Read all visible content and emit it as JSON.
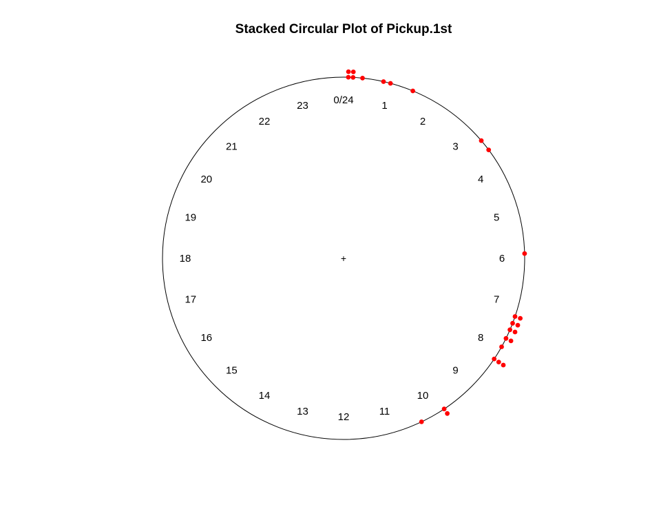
{
  "chart_data": {
    "type": "scatter",
    "subtype": "stacked-circular",
    "title": "Stacked Circular Plot of Pickup.1st",
    "units": "hours",
    "period": 24,
    "zero": "top",
    "rotation": "clockwise",
    "center_marker": "+",
    "hour_labels": [
      "0/24",
      "1",
      "2",
      "3",
      "4",
      "5",
      "6",
      "7",
      "8",
      "9",
      "10",
      "11",
      "12",
      "13",
      "14",
      "15",
      "16",
      "17",
      "18",
      "19",
      "20",
      "21",
      "22",
      "23"
    ],
    "point_color": "#ff0000",
    "points": [
      {
        "hour": 0.1,
        "stack": 2
      },
      {
        "hour": 0.2,
        "stack": 2
      },
      {
        "hour": 0.4,
        "stack": 1
      },
      {
        "hour": 0.85,
        "stack": 1
      },
      {
        "hour": 1.0,
        "stack": 1
      },
      {
        "hour": 1.5,
        "stack": 1
      },
      {
        "hour": 3.3,
        "stack": 1
      },
      {
        "hour": 3.55,
        "stack": 1
      },
      {
        "hour": 5.9,
        "stack": 1
      },
      {
        "hour": 7.25,
        "stack": 2
      },
      {
        "hour": 7.4,
        "stack": 2
      },
      {
        "hour": 7.55,
        "stack": 2
      },
      {
        "hour": 7.75,
        "stack": 2
      },
      {
        "hour": 7.95,
        "stack": 1
      },
      {
        "hour": 8.25,
        "stack": 3
      },
      {
        "hour": 9.75,
        "stack": 2
      },
      {
        "hour": 10.3,
        "stack": 1
      }
    ]
  }
}
